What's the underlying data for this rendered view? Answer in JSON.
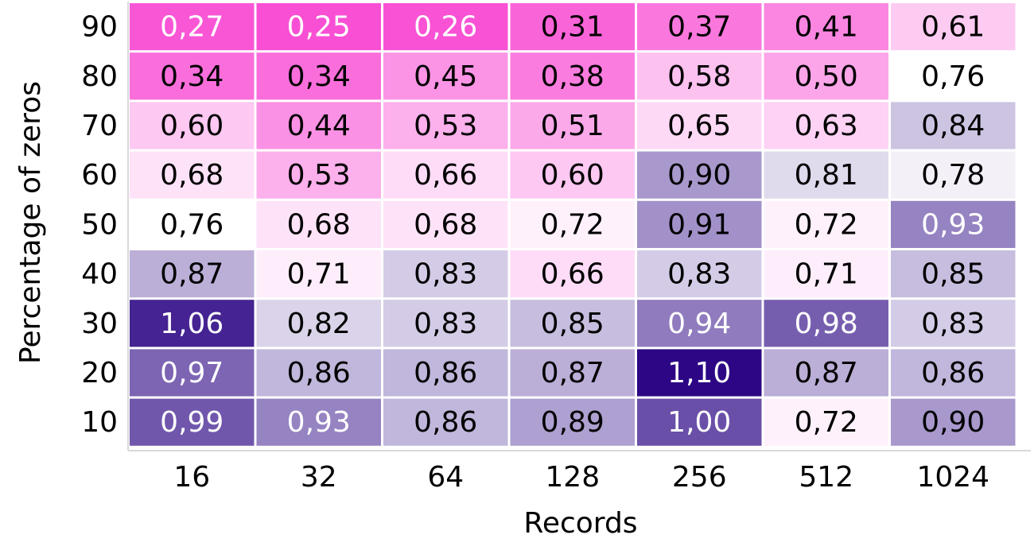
{
  "chart_data": {
    "type": "heatmap",
    "title": "",
    "xlabel": "Records",
    "ylabel": "Percentage of zeros",
    "x": [
      "16",
      "32",
      "64",
      "128",
      "256",
      "512",
      "1024"
    ],
    "y": [
      "90",
      "80",
      "70",
      "60",
      "50",
      "40",
      "30",
      "20",
      "10"
    ],
    "values": [
      [
        0.27,
        0.25,
        0.26,
        0.31,
        0.37,
        0.41,
        0.61
      ],
      [
        0.34,
        0.34,
        0.45,
        0.38,
        0.58,
        0.5,
        0.76
      ],
      [
        0.6,
        0.44,
        0.53,
        0.51,
        0.65,
        0.63,
        0.84
      ],
      [
        0.68,
        0.53,
        0.66,
        0.6,
        0.9,
        0.81,
        0.78
      ],
      [
        0.76,
        0.68,
        0.68,
        0.72,
        0.91,
        0.72,
        0.93
      ],
      [
        0.87,
        0.71,
        0.83,
        0.66,
        0.83,
        0.71,
        0.85
      ],
      [
        1.06,
        0.82,
        0.83,
        0.85,
        0.94,
        0.98,
        0.83
      ],
      [
        0.97,
        0.86,
        0.86,
        0.87,
        1.1,
        0.87,
        0.86
      ],
      [
        0.99,
        0.93,
        0.86,
        0.89,
        1.0,
        0.72,
        0.9
      ]
    ],
    "labels": [
      [
        "0,27",
        "0,25",
        "0,26",
        "0,31",
        "0,37",
        "0,41",
        "0,61"
      ],
      [
        "0,34",
        "0,34",
        "0,45",
        "0,38",
        "0,58",
        "0,50",
        "0,76"
      ],
      [
        "0,60",
        "0,44",
        "0,53",
        "0,51",
        "0,65",
        "0,63",
        "0,84"
      ],
      [
        "0,68",
        "0,53",
        "0,66",
        "0,60",
        "0,90",
        "0,81",
        "0,78"
      ],
      [
        "0,76",
        "0,68",
        "0,68",
        "0,72",
        "0,91",
        "0,72",
        "0,93"
      ],
      [
        "0,87",
        "0,71",
        "0,83",
        "0,66",
        "0,83",
        "0,71",
        "0,85"
      ],
      [
        "1,06",
        "0,82",
        "0,83",
        "0,85",
        "0,94",
        "0,98",
        "0,83"
      ],
      [
        "0,97",
        "0,86",
        "0,86",
        "0,87",
        "1,10",
        "0,87",
        "0,86"
      ],
      [
        "0,99",
        "0,93",
        "0,86",
        "0,89",
        "1,00",
        "0,72",
        "0,90"
      ]
    ],
    "color_scale": {
      "low": "#f94fd4",
      "mid": "#ffffff",
      "mid_value": 0.76,
      "high": "#2c0684",
      "vmin": 0.25,
      "vmax": 1.1
    }
  }
}
